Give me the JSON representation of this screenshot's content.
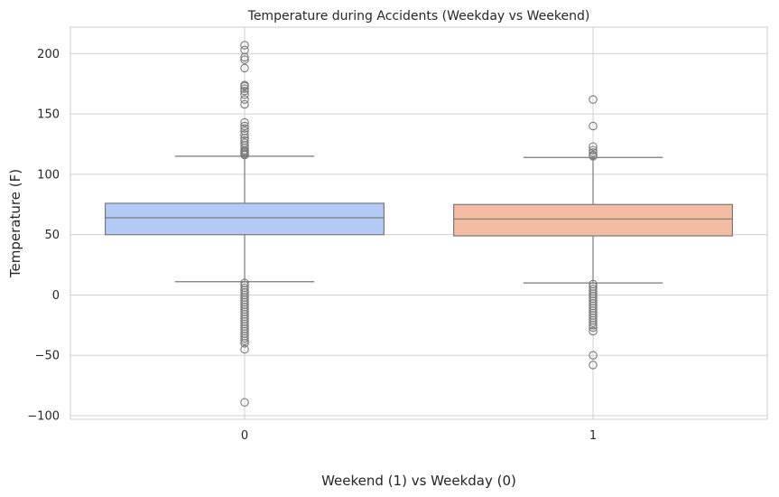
{
  "chart_data": {
    "type": "box",
    "title": "Temperature during Accidents (Weekday vs Weekend)",
    "xlabel": "Weekend (1) vs Weekday (0)",
    "ylabel": "Temperature (F)",
    "categories": [
      "0",
      "1"
    ],
    "yticks": [
      -100,
      -50,
      0,
      50,
      100,
      150,
      200
    ],
    "ylim": [
      -103,
      222
    ],
    "grid": true,
    "boxes": [
      {
        "category": "0",
        "color": "#b3c9f6",
        "q1": 50,
        "median": 64,
        "q3": 76,
        "whisker_low": 11,
        "whisker_high": 115,
        "outliers_high": [
          116,
          117,
          118,
          119,
          120,
          122,
          124,
          126,
          128,
          130,
          133,
          136,
          138,
          140,
          143,
          158,
          162,
          166,
          169,
          171,
          173,
          174,
          188,
          195,
          197,
          203,
          207
        ],
        "outliers_low": [
          10,
          8,
          6,
          4,
          2,
          0,
          -2,
          -4,
          -6,
          -8,
          -10,
          -12,
          -14,
          -16,
          -18,
          -20,
          -22,
          -24,
          -26,
          -28,
          -30,
          -32,
          -34,
          -36,
          -38,
          -40,
          -45,
          -89
        ]
      },
      {
        "category": "1",
        "color": "#f4bca3",
        "q1": 49,
        "median": 63,
        "q3": 75,
        "whisker_low": 10,
        "whisker_high": 114,
        "outliers_high": [
          115,
          116,
          118,
          120,
          123,
          140,
          162
        ],
        "outliers_low": [
          9,
          7,
          5,
          3,
          1,
          -1,
          -3,
          -5,
          -7,
          -9,
          -11,
          -13,
          -15,
          -17,
          -19,
          -21,
          -23,
          -25,
          -27,
          -30,
          -50,
          -58
        ]
      }
    ]
  }
}
